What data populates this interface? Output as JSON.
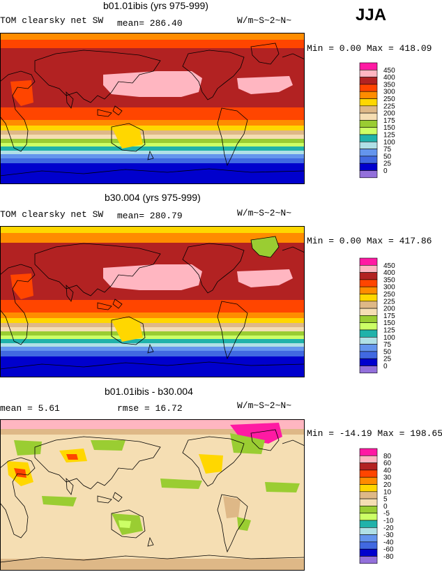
{
  "season": "JJA",
  "panels": [
    {
      "title": "b01.01ibis (yrs 975-999)",
      "left_text": "TOM clearsky net SW",
      "mid_text": "mean= 286.40",
      "units": "W/m~S~2~N~",
      "minmax": "Min =   0.00 Max = 418.09"
    },
    {
      "title": "b30.004 (yrs 975-999)",
      "left_text": "TOM clearsky net SW",
      "mid_text": "mean= 280.79",
      "units": "W/m~S~2~N~",
      "minmax": "Min =   0.00 Max = 417.86"
    },
    {
      "title": "b01.01ibis - b30.004",
      "left_text": "mean =   5.61",
      "mid_text": "rmse =  16.72",
      "units": "W/m~S~2~N~",
      "minmax": "Min = -14.19 Max = 198.65"
    }
  ],
  "colorbars": {
    "abs": {
      "labels": [
        "450",
        "400",
        "350",
        "300",
        "250",
        "225",
        "200",
        "175",
        "150",
        "125",
        "100",
        "75",
        "50",
        "25",
        "0"
      ],
      "colors": [
        "#ff1aa3",
        "#ffb6c1",
        "#b22222",
        "#ff4500",
        "#ff8c00",
        "#ffd700",
        "#deb887",
        "#f5deb3",
        "#9acd32",
        "#ccff66",
        "#20b2aa",
        "#b0e0e6",
        "#6495ed",
        "#4169e1",
        "#0000cd",
        "#9370db"
      ]
    },
    "diff": {
      "labels": [
        "80",
        "60",
        "40",
        "30",
        "20",
        "10",
        "5",
        "0",
        "-5",
        "-10",
        "-20",
        "-30",
        "-40",
        "-60",
        "-80"
      ],
      "colors": [
        "#ff1aa3",
        "#ffb6c1",
        "#b22222",
        "#ff4500",
        "#ff8c00",
        "#ffd700",
        "#deb887",
        "#f5deb3",
        "#9acd32",
        "#ccff66",
        "#20b2aa",
        "#b0e0e6",
        "#6495ed",
        "#4169e1",
        "#0000cd",
        "#9370db"
      ]
    }
  }
}
